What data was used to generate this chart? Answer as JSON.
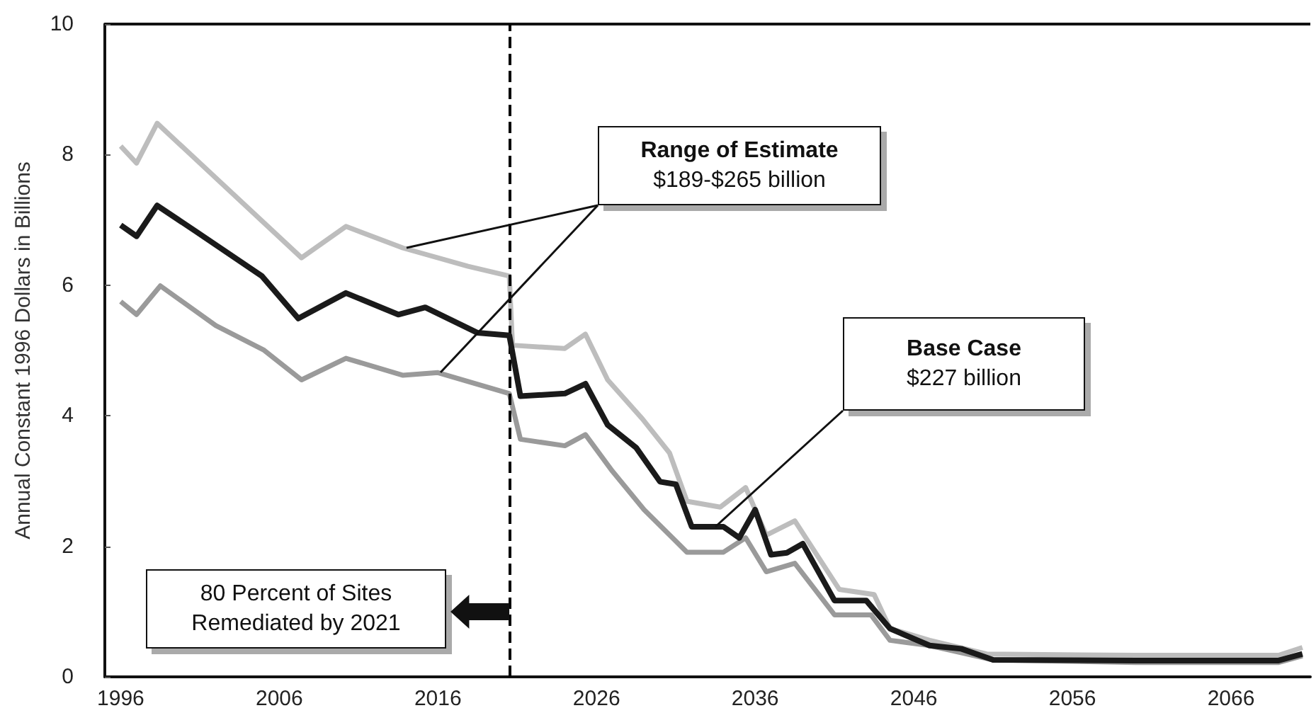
{
  "chart_data": {
    "type": "line",
    "ylabel": "Annual Constant 1996 Dollars in Billions",
    "xlim": [
      1995,
      2071
    ],
    "xticks": [
      1996,
      2006,
      2016,
      2026,
      2036,
      2046,
      2056,
      2066
    ],
    "ylim": [
      0,
      10
    ],
    "yticks": [
      0,
      2,
      4,
      6,
      8,
      10
    ],
    "series": [
      {
        "color": "#bdbdbd",
        "x": [
          1996,
          1997,
          1998.3,
          2007.4,
          2010.2,
          2013.8,
          2017.9,
          2020.5,
          2020.7,
          2024,
          2025.3,
          2026.7,
          2028.9,
          2030.6,
          2031.7,
          2033.8,
          2035.4,
          2036.7,
          2038.5,
          2041.3,
          2043.5,
          2044.5,
          2047,
          2050.6,
          2060,
          2069,
          2070.5
        ],
        "values": [
          8.13,
          7.87,
          8.48,
          6.42,
          6.9,
          6.57,
          6.29,
          6.14,
          5.08,
          5.03,
          5.25,
          4.55,
          3.95,
          3.43,
          2.69,
          2.6,
          2.9,
          2.17,
          2.39,
          1.34,
          1.26,
          0.74,
          0.56,
          0.35,
          0.33,
          0.33,
          0.45
        ]
      },
      {
        "color": "#1a1a1a",
        "x": [
          1996,
          1997,
          1998.3,
          2000.7,
          2004.9,
          2007.2,
          2010.2,
          2013.5,
          2015.2,
          2018.5,
          2020.5,
          2021.2,
          2024,
          2025.3,
          2026.7,
          2028.5,
          2030,
          2031,
          2032,
          2034,
          2035,
          2036,
          2037,
          2038,
          2039,
          2041,
          2043,
          2044.5,
          2047,
          2049,
          2051,
          2060,
          2069,
          2070.5
        ],
        "values": [
          6.92,
          6.75,
          7.22,
          6.83,
          6.14,
          5.49,
          5.88,
          5.55,
          5.66,
          5.27,
          5.23,
          4.3,
          4.34,
          4.49,
          3.86,
          3.51,
          2.99,
          2.95,
          2.3,
          2.3,
          2.13,
          2.56,
          1.87,
          1.9,
          2.04,
          1.17,
          1.17,
          0.74,
          0.48,
          0.43,
          0.26,
          0.25,
          0.25,
          0.35
        ]
      },
      {
        "color": "#9a9a9a",
        "x": [
          1996,
          1997,
          1998.5,
          2002,
          2005,
          2007.4,
          2010.2,
          2013.8,
          2016,
          2020.5,
          2021.2,
          2024,
          2025.3,
          2027,
          2029,
          2031.7,
          2034,
          2035.4,
          2036.7,
          2038.5,
          2041,
          2043.3,
          2044.5,
          2047,
          2051,
          2060,
          2069,
          2070.5
        ],
        "values": [
          5.75,
          5.55,
          5.99,
          5.38,
          5.01,
          4.55,
          4.88,
          4.62,
          4.66,
          4.34,
          3.64,
          3.54,
          3.71,
          3.15,
          2.56,
          1.91,
          1.91,
          2.13,
          1.61,
          1.74,
          0.95,
          0.95,
          0.56,
          0.48,
          0.26,
          0.22,
          0.22,
          0.32
        ]
      }
    ],
    "ref_lines": [
      {
        "axis": "x",
        "value": 2020.5,
        "color": "#000000",
        "line_style": "dashed"
      }
    ],
    "annotations": [
      "Range of Estimate\n$189-$265 billion",
      "Base Case\n$227 billion",
      "80 Percent of Sites\nRemediated by 2021"
    ],
    "grid": false
  }
}
